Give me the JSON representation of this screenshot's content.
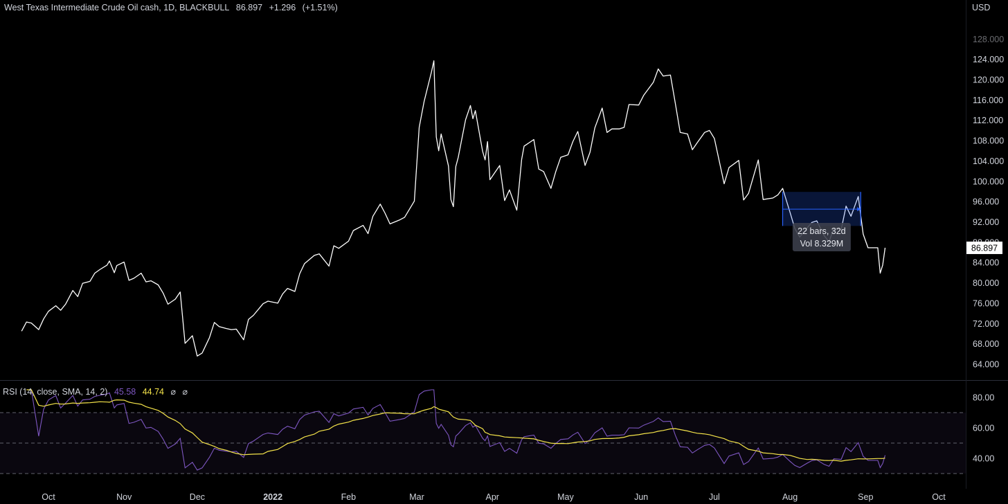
{
  "header": {
    "symbol": "West Texas Intermediate Crude Oil cash, 1D, BLACKBULL",
    "last": "86.897",
    "change": "+1.296",
    "change_pct": "(+1.51%)",
    "currency": "USD"
  },
  "rsi_legend": {
    "label": "RSI (14, close, SMA, 14, 2)",
    "rsi_value": "45.58",
    "sma_value": "44.74",
    "icon1": "⌀",
    "icon2": "⌀",
    "rsi_color": "#7e57c2",
    "sma_color": "#f5e44a"
  },
  "last_price_badge": "86.897",
  "measure_tool": {
    "line1": "22 bars, 32d",
    "line2": "Vol 8.329M"
  },
  "chart_data": [
    {
      "type": "line",
      "name": "price",
      "color": "#ffffff",
      "ylim": [
        62,
        128
      ],
      "y_ticks": [
        "124.000",
        "120.000",
        "116.000",
        "112.000",
        "108.000",
        "104.000",
        "100.000",
        "96.000",
        "92.000",
        "88.000",
        "84.000",
        "80.000",
        "76.000",
        "72.000",
        "68.000",
        "64.000"
      ],
      "x_ticks": [
        "Oct",
        "Nov",
        "Dec",
        "2022",
        "Feb",
        "Mar",
        "Apr",
        "May",
        "Jun",
        "Jul",
        "Aug",
        "Sep",
        "Oct"
      ],
      "points": [
        [
          "2021-09-20",
          70.5
        ],
        [
          "2021-09-22",
          72.3
        ],
        [
          "2021-09-24",
          72.1
        ],
        [
          "2021-09-27",
          70.8
        ],
        [
          "2021-09-29",
          72.9
        ],
        [
          "2021-10-01",
          74.4
        ],
        [
          "2021-10-04",
          75.5
        ],
        [
          "2021-10-06",
          74.6
        ],
        [
          "2021-10-08",
          75.8
        ],
        [
          "2021-10-11",
          78.5
        ],
        [
          "2021-10-13",
          77.3
        ],
        [
          "2021-10-15",
          79.9
        ],
        [
          "2021-10-18",
          80.3
        ],
        [
          "2021-10-20",
          81.9
        ],
        [
          "2021-10-22",
          82.6
        ],
        [
          "2021-10-25",
          83.5
        ],
        [
          "2021-10-26",
          84.3
        ],
        [
          "2021-10-28",
          82.0
        ],
        [
          "2021-10-29",
          83.4
        ],
        [
          "2021-11-01",
          84.1
        ],
        [
          "2021-11-03",
          80.5
        ],
        [
          "2021-11-05",
          80.9
        ],
        [
          "2021-11-08",
          81.9
        ],
        [
          "2021-11-10",
          80.2
        ],
        [
          "2021-11-12",
          80.4
        ],
        [
          "2021-11-15",
          79.6
        ],
        [
          "2021-11-17",
          78.0
        ],
        [
          "2021-11-19",
          75.8
        ],
        [
          "2021-11-22",
          76.8
        ],
        [
          "2021-11-24",
          78.2
        ],
        [
          "2021-11-26",
          68.1
        ],
        [
          "2021-11-29",
          69.6
        ],
        [
          "2021-12-01",
          65.6
        ],
        [
          "2021-12-03",
          66.2
        ],
        [
          "2021-12-06",
          69.2
        ],
        [
          "2021-12-08",
          72.2
        ],
        [
          "2021-12-10",
          71.4
        ],
        [
          "2021-12-13",
          71.0
        ],
        [
          "2021-12-15",
          70.8
        ],
        [
          "2021-12-17",
          70.9
        ],
        [
          "2021-12-20",
          68.8
        ],
        [
          "2021-12-22",
          72.8
        ],
        [
          "2021-12-24",
          73.6
        ],
        [
          "2021-12-28",
          75.9
        ],
        [
          "2021-12-30",
          76.4
        ],
        [
          "2022-01-03",
          76.0
        ],
        [
          "2022-01-05",
          77.8
        ],
        [
          "2022-01-07",
          78.9
        ],
        [
          "2022-01-10",
          78.3
        ],
        [
          "2022-01-12",
          81.8
        ],
        [
          "2022-01-14",
          83.8
        ],
        [
          "2022-01-18",
          85.4
        ],
        [
          "2022-01-20",
          85.7
        ],
        [
          "2022-01-24",
          83.3
        ],
        [
          "2022-01-26",
          87.3
        ],
        [
          "2022-01-28",
          86.8
        ],
        [
          "2022-02-01",
          88.2
        ],
        [
          "2022-02-03",
          90.3
        ],
        [
          "2022-02-07",
          91.3
        ],
        [
          "2022-02-09",
          89.7
        ],
        [
          "2022-02-11",
          93.1
        ],
        [
          "2022-02-14",
          95.5
        ],
        [
          "2022-02-16",
          93.7
        ],
        [
          "2022-02-18",
          91.6
        ],
        [
          "2022-02-22",
          92.4
        ],
        [
          "2022-02-24",
          92.9
        ],
        [
          "2022-02-28",
          96.1
        ],
        [
          "2022-03-02",
          110.6
        ],
        [
          "2022-03-04",
          115.7
        ],
        [
          "2022-03-07",
          121.5
        ],
        [
          "2022-03-08",
          123.7
        ],
        [
          "2022-03-09",
          108.7
        ],
        [
          "2022-03-10",
          106.0
        ],
        [
          "2022-03-11",
          109.3
        ],
        [
          "2022-03-14",
          103.0
        ],
        [
          "2022-03-15",
          96.4
        ],
        [
          "2022-03-16",
          95.0
        ],
        [
          "2022-03-17",
          102.9
        ],
        [
          "2022-03-18",
          104.7
        ],
        [
          "2022-03-21",
          112.1
        ],
        [
          "2022-03-23",
          114.9
        ],
        [
          "2022-03-24",
          112.3
        ],
        [
          "2022-03-25",
          113.9
        ],
        [
          "2022-03-28",
          105.9
        ],
        [
          "2022-03-29",
          104.2
        ],
        [
          "2022-03-30",
          107.8
        ],
        [
          "2022-03-31",
          100.3
        ],
        [
          "2022-04-04",
          103.1
        ],
        [
          "2022-04-06",
          96.2
        ],
        [
          "2022-04-08",
          98.3
        ],
        [
          "2022-04-11",
          94.3
        ],
        [
          "2022-04-13",
          104.3
        ],
        [
          "2022-04-14",
          106.9
        ],
        [
          "2022-04-18",
          108.2
        ],
        [
          "2022-04-20",
          102.4
        ],
        [
          "2022-04-22",
          101.9
        ],
        [
          "2022-04-25",
          98.6
        ],
        [
          "2022-04-27",
          101.9
        ],
        [
          "2022-04-29",
          104.7
        ],
        [
          "2022-05-02",
          105.2
        ],
        [
          "2022-05-04",
          107.8
        ],
        [
          "2022-05-06",
          109.8
        ],
        [
          "2022-05-09",
          103.1
        ],
        [
          "2022-05-11",
          105.7
        ],
        [
          "2022-05-13",
          110.5
        ],
        [
          "2022-05-16",
          114.4
        ],
        [
          "2022-05-18",
          109.6
        ],
        [
          "2022-05-20",
          110.3
        ],
        [
          "2022-05-23",
          110.3
        ],
        [
          "2022-05-25",
          110.6
        ],
        [
          "2022-05-27",
          115.1
        ],
        [
          "2022-05-31",
          115.0
        ],
        [
          "2022-06-02",
          116.9
        ],
        [
          "2022-06-06",
          119.5
        ],
        [
          "2022-06-08",
          122.1
        ],
        [
          "2022-06-10",
          120.7
        ],
        [
          "2022-06-13",
          120.9
        ],
        [
          "2022-06-15",
          115.3
        ],
        [
          "2022-06-17",
          109.6
        ],
        [
          "2022-06-20",
          109.3
        ],
        [
          "2022-06-22",
          106.2
        ],
        [
          "2022-06-24",
          107.6
        ],
        [
          "2022-06-27",
          109.6
        ],
        [
          "2022-06-29",
          110.0
        ],
        [
          "2022-07-01",
          108.4
        ],
        [
          "2022-07-05",
          99.5
        ],
        [
          "2022-07-07",
          102.7
        ],
        [
          "2022-07-11",
          104.1
        ],
        [
          "2022-07-13",
          96.3
        ],
        [
          "2022-07-15",
          97.6
        ],
        [
          "2022-07-19",
          104.2
        ],
        [
          "2022-07-21",
          96.4
        ],
        [
          "2022-07-25",
          96.7
        ],
        [
          "2022-07-27",
          97.3
        ],
        [
          "2022-07-29",
          98.6
        ],
        [
          "2022-08-01",
          93.9
        ],
        [
          "2022-08-03",
          90.7
        ],
        [
          "2022-08-05",
          89.0
        ],
        [
          "2022-08-08",
          90.8
        ],
        [
          "2022-08-10",
          91.9
        ],
        [
          "2022-08-12",
          92.2
        ],
        [
          "2022-08-15",
          89.3
        ],
        [
          "2022-08-17",
          88.1
        ],
        [
          "2022-08-19",
          90.8
        ],
        [
          "2022-08-22",
          90.5
        ],
        [
          "2022-08-24",
          95.1
        ],
        [
          "2022-08-26",
          93.1
        ],
        [
          "2022-08-29",
          97.0
        ],
        [
          "2022-08-31",
          89.6
        ],
        [
          "2022-09-02",
          86.9
        ],
        [
          "2022-09-06",
          86.9
        ],
        [
          "2022-09-07",
          81.9
        ],
        [
          "2022-09-08",
          83.5
        ],
        [
          "2022-09-09",
          86.9
        ]
      ]
    },
    {
      "type": "line",
      "name": "RSI (14, close, SMA, 14, 2)",
      "ylim": [
        22,
        90
      ],
      "y_ticks": [
        "80.00",
        "60.00",
        "40.00"
      ],
      "bands": [
        30,
        50,
        70
      ],
      "series": [
        {
          "name": "RSI",
          "color": "#7e57c2",
          "values_note": "derived from price"
        },
        {
          "name": "SMA",
          "color": "#f5e44a"
        }
      ]
    }
  ]
}
